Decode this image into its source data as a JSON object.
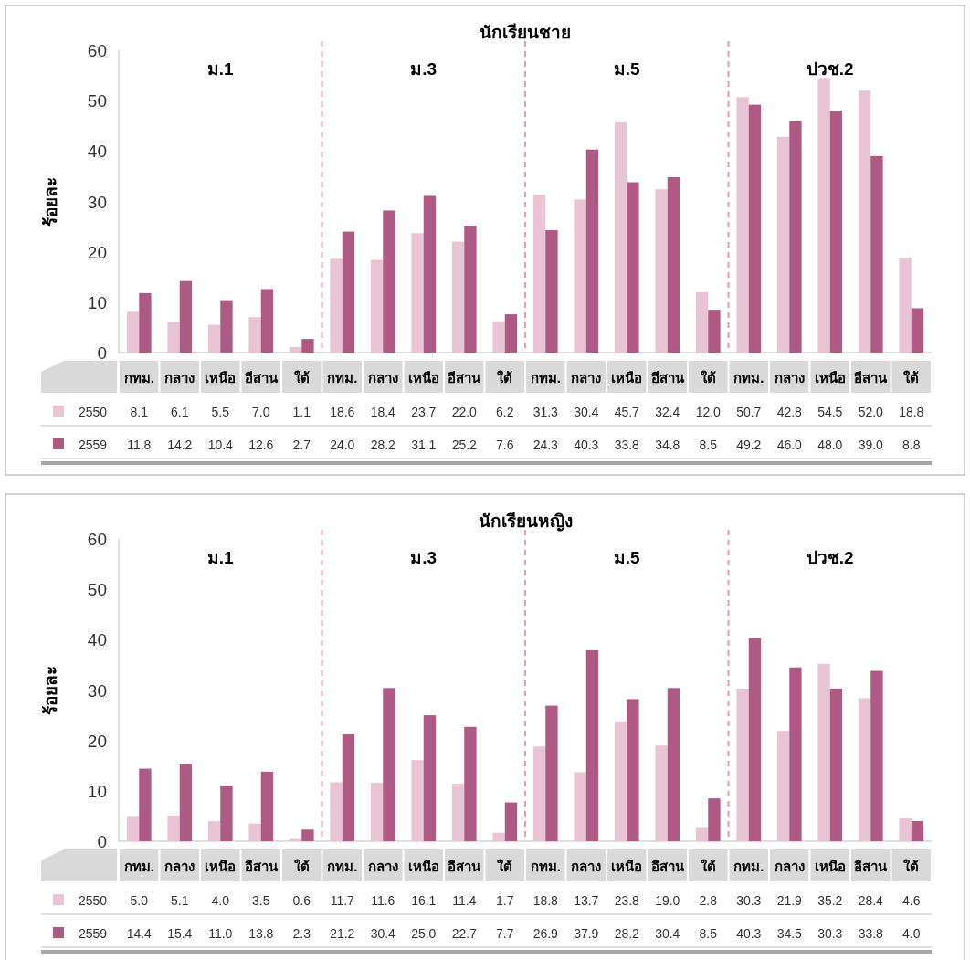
{
  "chart_data": [
    {
      "type": "bar",
      "title": "นักเรียนชาย",
      "ylabel": "ร้อยละ",
      "categories": [
        "กทม.",
        "กลาง",
        "เหนือ",
        "อีสาน",
        "ใต้",
        "กทม.",
        "กลาง",
        "เหนือ",
        "อีสาน",
        "ใต้",
        "กทม.",
        "กลาง",
        "เหนือ",
        "อีสาน",
        "ใต้",
        "กทม.",
        "กลาง",
        "เหนือ",
        "อีสาน",
        "ใต้"
      ],
      "series": [
        {
          "name": "2550",
          "color": "#e8c4d4",
          "values": [
            8.1,
            6.1,
            5.5,
            7.0,
            1.1,
            18.6,
            18.4,
            23.7,
            22.0,
            6.2,
            31.3,
            30.4,
            45.7,
            32.4,
            12.0,
            50.7,
            42.8,
            54.5,
            52.0,
            18.8
          ],
          "value_labels": [
            "8.1",
            "6.1",
            "5.5",
            "7.0",
            "1.1",
            "18.6",
            "18.4",
            "23.7",
            "22.0",
            "6.2",
            "31.3",
            "30.4",
            "45.7",
            "32.4",
            "12.0",
            "50.7",
            "42.8",
            "54.5",
            "52.0",
            "18.8"
          ]
        },
        {
          "name": "2559",
          "color": "#ae5a85",
          "values": [
            11.8,
            14.2,
            10.4,
            12.6,
            2.7,
            24.0,
            28.2,
            31.1,
            25.2,
            7.6,
            24.3,
            40.3,
            33.8,
            34.8,
            8.5,
            49.2,
            46.0,
            48.0,
            39.0,
            8.8
          ],
          "value_labels": [
            "11.8",
            "14.2",
            "10.4",
            "12.6",
            "2.7",
            "24.0",
            "28.2",
            "31.1",
            "25.2",
            "7.6",
            "24.3",
            "40.3",
            "33.8",
            "34.8",
            "8.5",
            "49.2",
            "46.0",
            "48.0",
            "39.0",
            "8.8"
          ]
        }
      ],
      "ylim": [
        0,
        60
      ],
      "yticks": [
        0,
        10,
        20,
        30,
        40,
        50,
        60
      ],
      "legend": "bottom left",
      "annotations": [
        "ม.1",
        "ม.3",
        "ม.5",
        "ปวช.2"
      ]
    },
    {
      "type": "bar",
      "title": "นักเรียนหญิง",
      "ylabel": "ร้อยละ",
      "categories": [
        "กทม.",
        "กลาง",
        "เหนือ",
        "อีสาน",
        "ใต้",
        "กทม.",
        "กลาง",
        "เหนือ",
        "อีสาน",
        "ใต้",
        "กทม.",
        "กลาง",
        "เหนือ",
        "อีสาน",
        "ใต้",
        "กทม.",
        "กลาง",
        "เหนือ",
        "อีสาน",
        "ใต้"
      ],
      "series": [
        {
          "name": "2550",
          "color": "#e8c4d4",
          "values": [
            5.0,
            5.1,
            4.0,
            3.5,
            0.6,
            11.7,
            11.6,
            16.1,
            11.4,
            1.7,
            18.8,
            13.7,
            23.8,
            19.0,
            2.8,
            30.3,
            21.9,
            35.2,
            28.4,
            4.6
          ],
          "value_labels": [
            "5.0",
            "5.1",
            "4.0",
            "3.5",
            "0.6",
            "11.7",
            "11.6",
            "16.1",
            "11.4",
            "1.7",
            "18.8",
            "13.7",
            "23.8",
            "19.0",
            "2.8",
            "30.3",
            "21.9",
            "35.2",
            "28.4",
            "4.6"
          ]
        },
        {
          "name": "2559",
          "color": "#ae5a85",
          "values": [
            14.4,
            15.4,
            11.0,
            13.8,
            2.3,
            21.2,
            30.4,
            25.0,
            22.7,
            7.7,
            26.9,
            37.9,
            28.2,
            30.4,
            8.5,
            40.3,
            34.5,
            30.3,
            33.8,
            4.0
          ],
          "value_labels": [
            "14.4",
            "15.4",
            "11.0",
            "13.8",
            "2.3",
            "21.2",
            "30.4",
            "25.0",
            "22.7",
            "7.7",
            "26.9",
            "37.9",
            "28.2",
            "30.4",
            "8.5",
            "40.3",
            "34.5",
            "30.3",
            "33.8",
            "4.0"
          ]
        }
      ],
      "ylim": [
        0,
        60
      ],
      "yticks": [
        0,
        10,
        20,
        30,
        40,
        50,
        60
      ],
      "legend": "bottom left",
      "annotations": [
        "ม.1",
        "ม.3",
        "ม.5",
        "ปวช.2"
      ]
    }
  ]
}
